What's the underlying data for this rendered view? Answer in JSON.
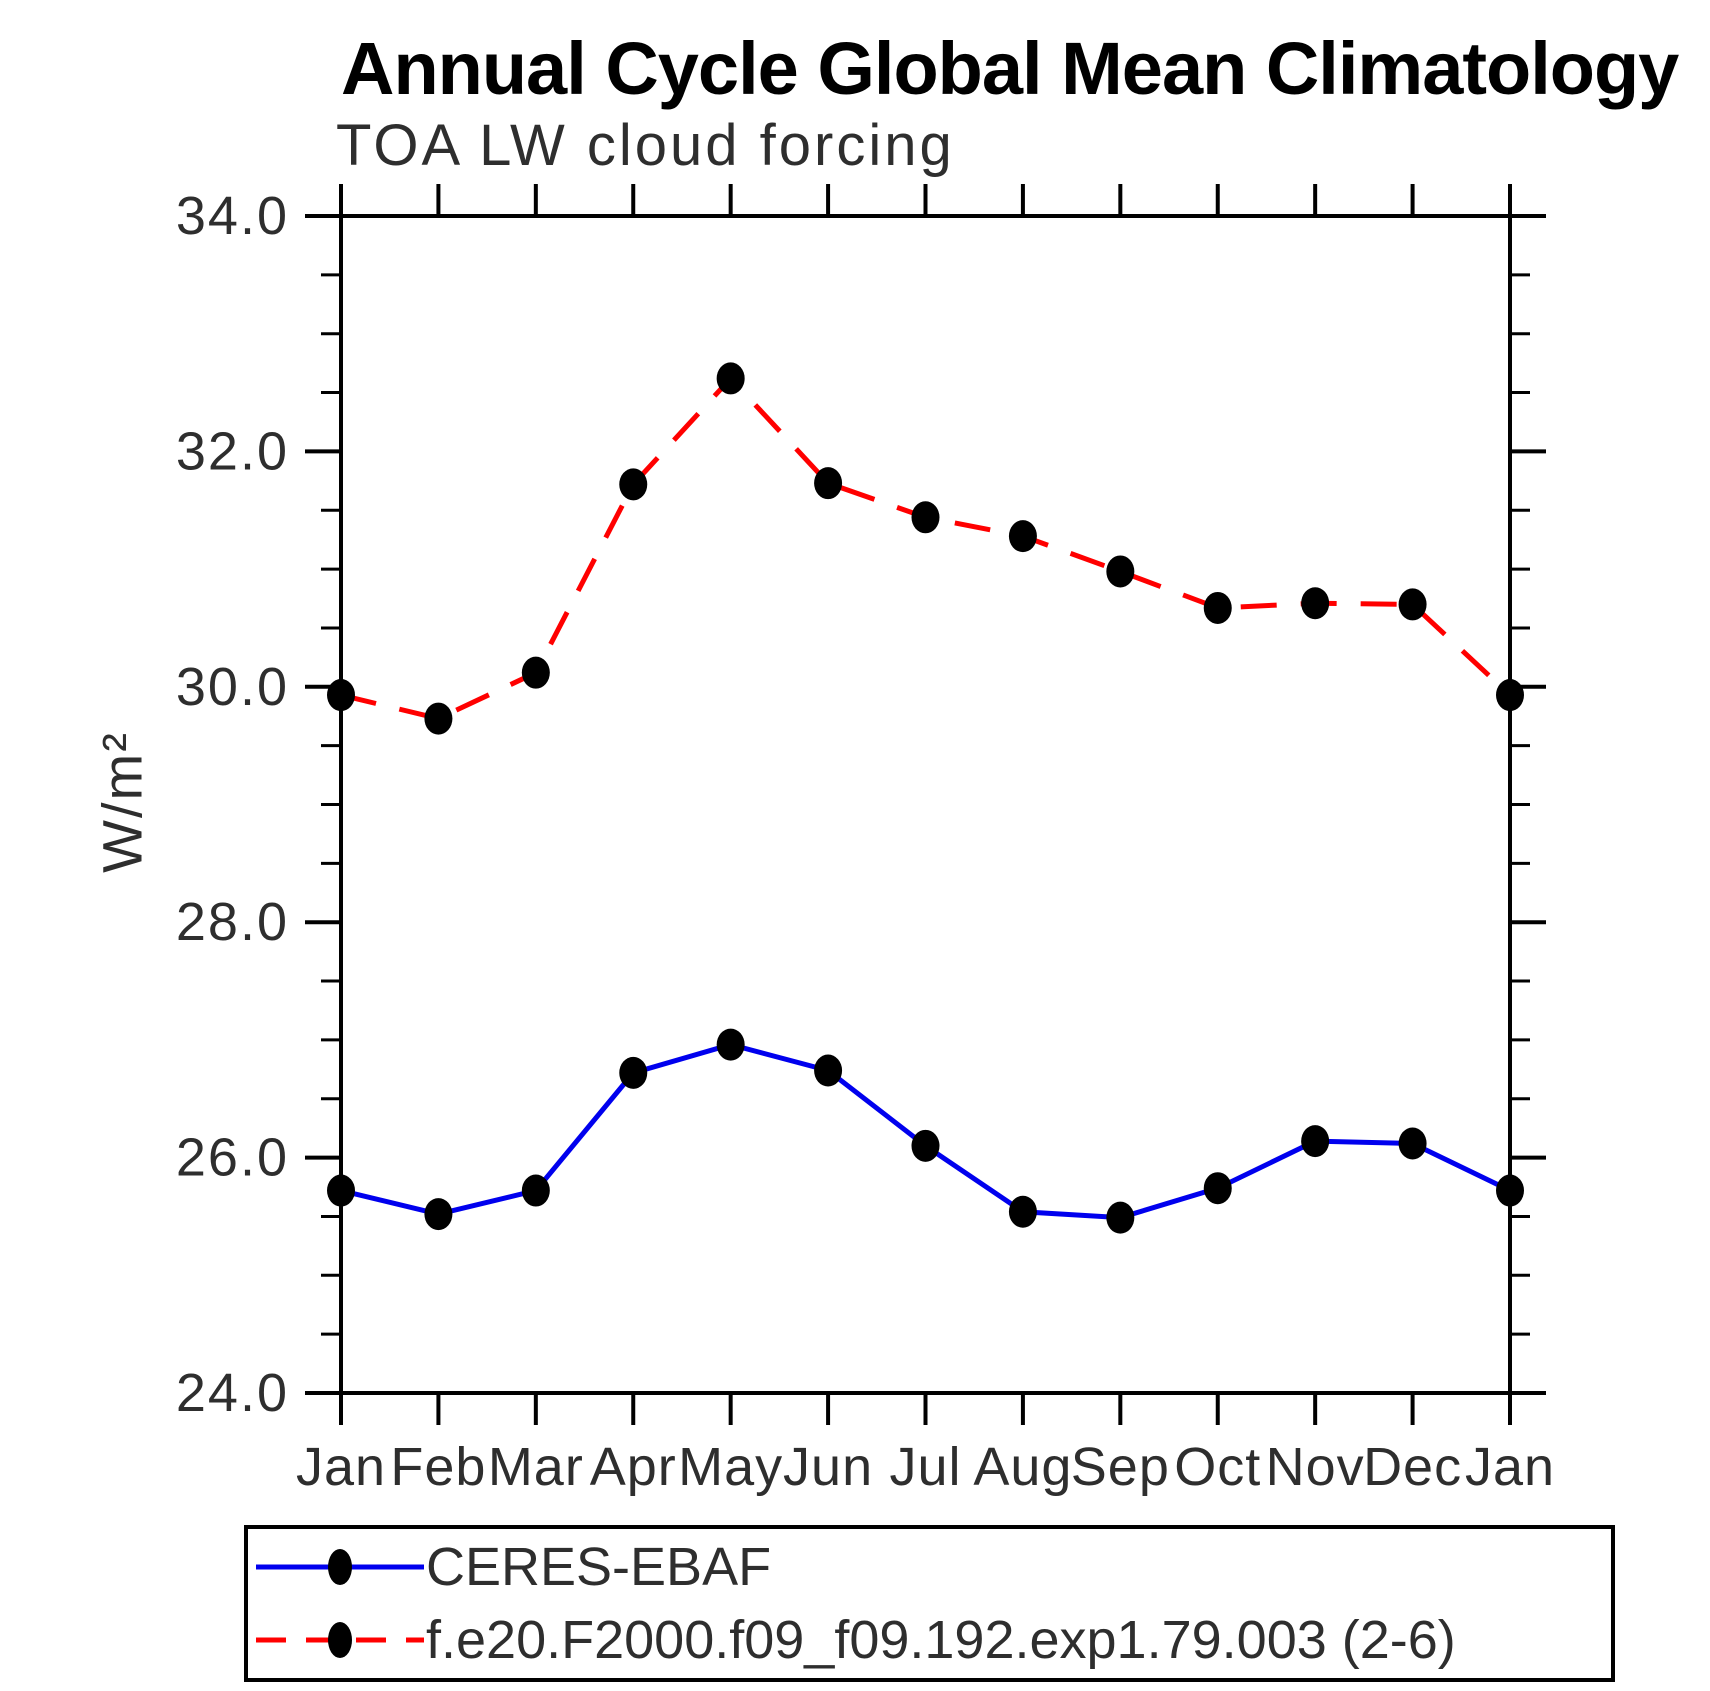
{
  "title": "Annual Cycle Global Mean Climatology",
  "subtitle": "TOA LW cloud forcing",
  "ylabel": "W/m²",
  "chart_data": {
    "type": "line",
    "title": "Annual Cycle Global Mean Climatology",
    "subtitle": "TOA LW cloud forcing",
    "xlabel": "",
    "ylabel": "W/m²",
    "ylim": [
      24.0,
      34.0
    ],
    "ytick_major": [
      24.0,
      26.0,
      28.0,
      30.0,
      32.0,
      34.0
    ],
    "ytick_labels": [
      "24.0",
      "26.0",
      "28.0",
      "30.0",
      "32.0",
      "34.0"
    ],
    "ytick_minor_step": 0.5,
    "grid": false,
    "legend_position": "bottom",
    "marker": "filled-black-dot",
    "categories": [
      "Jan",
      "Feb",
      "Mar",
      "Apr",
      "May",
      "Jun",
      "Jul",
      "Aug",
      "Sep",
      "Oct",
      "Nov",
      "Dec",
      "Jan"
    ],
    "series": [
      {
        "name": "CERES-EBAF",
        "color": "#0000ee",
        "line_style": "solid",
        "values": [
          25.72,
          25.52,
          25.72,
          26.72,
          26.96,
          26.74,
          26.1,
          25.54,
          25.49,
          25.74,
          26.14,
          26.12,
          25.72
        ]
      },
      {
        "name": "f.e20.F2000.f09_f09.192.exp1.79.003 (2-6)",
        "color": "#ff0000",
        "line_style": "dashed",
        "values": [
          29.93,
          29.73,
          30.12,
          31.72,
          32.62,
          31.73,
          31.44,
          31.28,
          30.98,
          30.67,
          30.71,
          30.7,
          29.93
        ]
      }
    ]
  }
}
